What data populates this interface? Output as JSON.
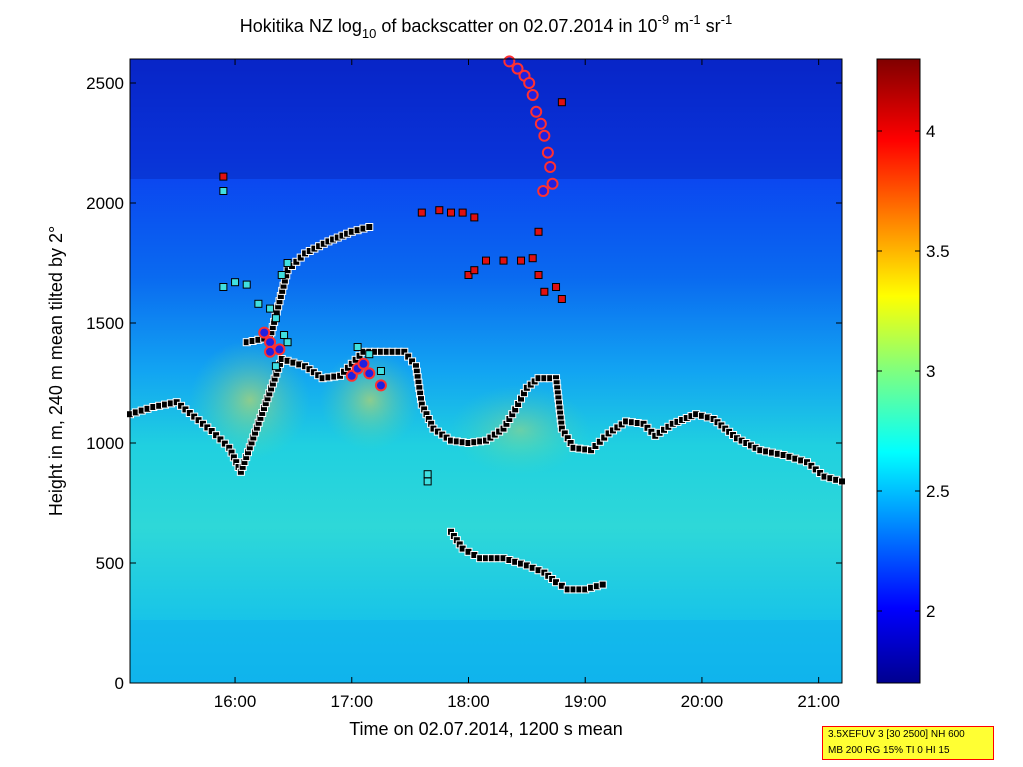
{
  "chart_data": {
    "type": "heatmap",
    "title": {
      "prefix": "Hokitika NZ log",
      "sub": "10",
      "middle": " of backscatter on 02.07.2014 in 10",
      "sup1": "-9",
      "unit1": " m",
      "sup2": "-1",
      "unit2": " sr",
      "sup3": "-1"
    },
    "xlabel": "Time on 02.07.2014, 1200 s mean",
    "ylabel": "Height in m, 240 m mean tilted by 2°",
    "x_ticks": [
      "16:00",
      "17:00",
      "18:00",
      "19:00",
      "20:00",
      "21:00"
    ],
    "x_tick_hours": [
      16,
      17,
      18,
      19,
      20,
      21
    ],
    "xlim_hours": [
      15.1,
      21.2
    ],
    "y_ticks": [
      "0",
      "500",
      "1000",
      "1500",
      "2000",
      "2500"
    ],
    "y_tick_values": [
      0,
      500,
      1000,
      1500,
      2000,
      2500
    ],
    "ylim": [
      0,
      2600
    ],
    "colorbar": {
      "range": [
        1.7,
        4.3
      ],
      "ticks": [
        "2",
        "2.5",
        "3",
        "3.5",
        "4"
      ],
      "tick_values": [
        2,
        2.5,
        3,
        3.5,
        4
      ]
    },
    "series": [
      {
        "marker": "square-black",
        "points": [
          [
            15.1,
            1120
          ],
          [
            15.3,
            1150
          ],
          [
            15.5,
            1170
          ],
          [
            15.65,
            1110
          ],
          [
            15.8,
            1050
          ],
          [
            15.95,
            980
          ],
          [
            16.05,
            880
          ],
          [
            16.4,
            1350
          ],
          [
            16.6,
            1320
          ],
          [
            16.75,
            1270
          ],
          [
            16.9,
            1280
          ],
          [
            17.1,
            1380
          ],
          [
            17.3,
            1380
          ],
          [
            17.45,
            1380
          ],
          [
            17.55,
            1320
          ],
          [
            17.6,
            1160
          ],
          [
            17.7,
            1060
          ],
          [
            17.85,
            1010
          ],
          [
            18.0,
            1000
          ],
          [
            18.15,
            1010
          ],
          [
            18.3,
            1060
          ],
          [
            18.4,
            1140
          ],
          [
            18.5,
            1230
          ],
          [
            18.6,
            1270
          ],
          [
            18.75,
            1270
          ],
          [
            18.8,
            1060
          ],
          [
            18.9,
            980
          ],
          [
            19.05,
            970
          ],
          [
            19.2,
            1040
          ],
          [
            19.35,
            1090
          ],
          [
            19.5,
            1080
          ],
          [
            19.6,
            1030
          ],
          [
            19.75,
            1080
          ],
          [
            19.95,
            1120
          ],
          [
            20.1,
            1100
          ],
          [
            20.3,
            1020
          ],
          [
            20.5,
            970
          ],
          [
            20.7,
            950
          ],
          [
            20.9,
            920
          ],
          [
            21.05,
            860
          ],
          [
            21.2,
            840
          ]
        ]
      },
      {
        "marker": "square-black",
        "points": [
          [
            17.85,
            630
          ],
          [
            17.95,
            560
          ],
          [
            18.1,
            520
          ],
          [
            18.3,
            520
          ],
          [
            18.5,
            490
          ],
          [
            18.65,
            460
          ],
          [
            18.75,
            420
          ],
          [
            18.85,
            390
          ],
          [
            19.0,
            390
          ],
          [
            19.15,
            410
          ]
        ]
      },
      {
        "marker": "square-black",
        "points": [
          [
            16.1,
            1420
          ],
          [
            16.3,
            1440
          ],
          [
            16.45,
            1720
          ],
          [
            16.6,
            1790
          ],
          [
            16.8,
            1840
          ],
          [
            17.0,
            1880
          ],
          [
            17.15,
            1900
          ]
        ]
      },
      {
        "marker": "square-cyan",
        "points": [
          [
            15.9,
            1650
          ],
          [
            16.0,
            1670
          ],
          [
            16.1,
            1660
          ],
          [
            16.2,
            1580
          ],
          [
            16.3,
            1560
          ],
          [
            16.35,
            1520
          ],
          [
            16.4,
            1700
          ],
          [
            16.45,
            1750
          ],
          [
            16.42,
            1450
          ],
          [
            16.35,
            1320
          ],
          [
            16.45,
            1420
          ],
          [
            17.05,
            1400
          ],
          [
            17.15,
            1370
          ],
          [
            17.25,
            1300
          ],
          [
            17.65,
            840
          ],
          [
            17.65,
            870
          ],
          [
            15.9,
            2050
          ]
        ]
      },
      {
        "marker": "square-red",
        "points": [
          [
            17.6,
            1960
          ],
          [
            17.75,
            1970
          ],
          [
            17.85,
            1960
          ],
          [
            17.95,
            1960
          ],
          [
            18.05,
            1940
          ],
          [
            18.0,
            1700
          ],
          [
            18.05,
            1720
          ],
          [
            18.15,
            1760
          ],
          [
            18.3,
            1760
          ],
          [
            18.45,
            1760
          ],
          [
            18.55,
            1770
          ],
          [
            18.6,
            1700
          ],
          [
            18.65,
            1630
          ],
          [
            18.75,
            1650
          ],
          [
            18.8,
            1600
          ],
          [
            15.9,
            2110
          ],
          [
            18.6,
            1880
          ],
          [
            18.8,
            2420
          ]
        ]
      },
      {
        "marker": "circle-red-blue",
        "points": [
          [
            16.25,
            1460
          ],
          [
            16.3,
            1420
          ],
          [
            16.3,
            1380
          ],
          [
            16.38,
            1390
          ],
          [
            17.0,
            1280
          ],
          [
            17.05,
            1310
          ],
          [
            17.1,
            1330
          ],
          [
            17.15,
            1290
          ],
          [
            17.25,
            1240
          ],
          [
            18.35,
            2590
          ],
          [
            18.42,
            2560
          ],
          [
            18.48,
            2530
          ],
          [
            18.52,
            2500
          ],
          [
            18.55,
            2450
          ],
          [
            18.58,
            2380
          ],
          [
            18.62,
            2330
          ],
          [
            18.65,
            2280
          ],
          [
            18.68,
            2210
          ],
          [
            18.7,
            2150
          ],
          [
            18.72,
            2080
          ],
          [
            18.64,
            2050
          ]
        ]
      }
    ]
  },
  "info_box": {
    "line1": "3.5XEFUV 3 [30 2500] NH 600",
    "line2": "MB 200 RG 15% TI 0 HI 15"
  }
}
